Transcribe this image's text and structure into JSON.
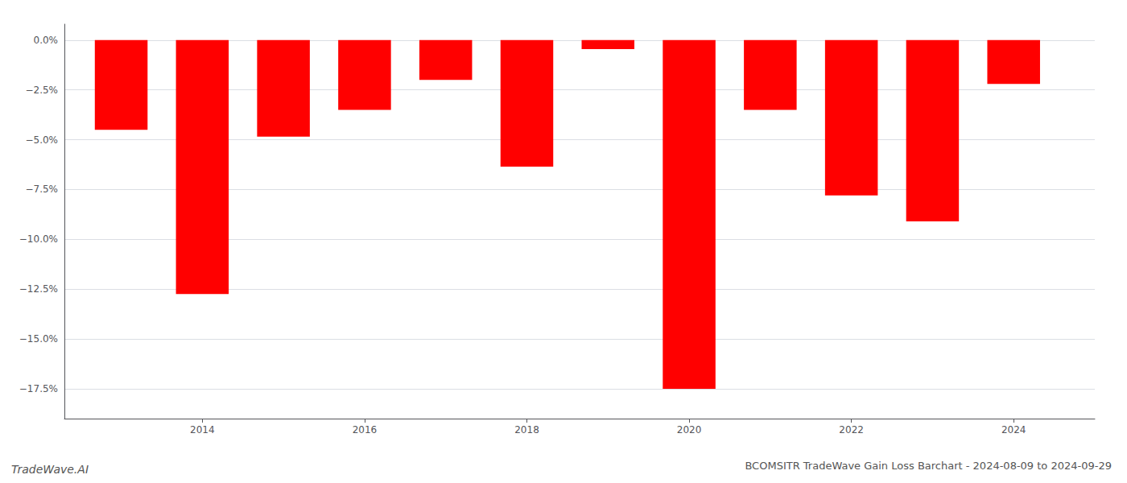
{
  "chart_data": {
    "type": "bar",
    "title": "BCOMSITR TradeWave Gain Loss Barchart - 2024-08-09 to 2024-09-29",
    "annotations": [
      "TradeWave.AI"
    ],
    "x": [
      2013,
      2014,
      2015,
      2016,
      2017,
      2018,
      2019,
      2020,
      2021,
      2022,
      2023,
      2024
    ],
    "values": [
      -4.5,
      -12.75,
      -4.85,
      -3.5,
      -2.0,
      -6.35,
      -0.45,
      -17.5,
      -3.5,
      -7.8,
      -9.1,
      -2.2
    ],
    "color": "#ff0000",
    "xlim": [
      2012.3,
      2025.0
    ],
    "xticks": [
      2014,
      2016,
      2018,
      2020,
      2022,
      2024
    ],
    "ylim": [
      -19.0,
      0.8
    ],
    "yticks": [
      {
        "value": 0.0,
        "label": "0.0%"
      },
      {
        "value": -2.5,
        "label": "−2.5%"
      },
      {
        "value": -5.0,
        "label": "−5.0%"
      },
      {
        "value": -7.5,
        "label": "−7.5%"
      },
      {
        "value": -10.0,
        "label": "−10.0%"
      },
      {
        "value": -12.5,
        "label": "−12.5%"
      },
      {
        "value": -15.0,
        "label": "−15.0%"
      },
      {
        "value": -17.5,
        "label": "−17.5%"
      }
    ],
    "grid": true
  }
}
